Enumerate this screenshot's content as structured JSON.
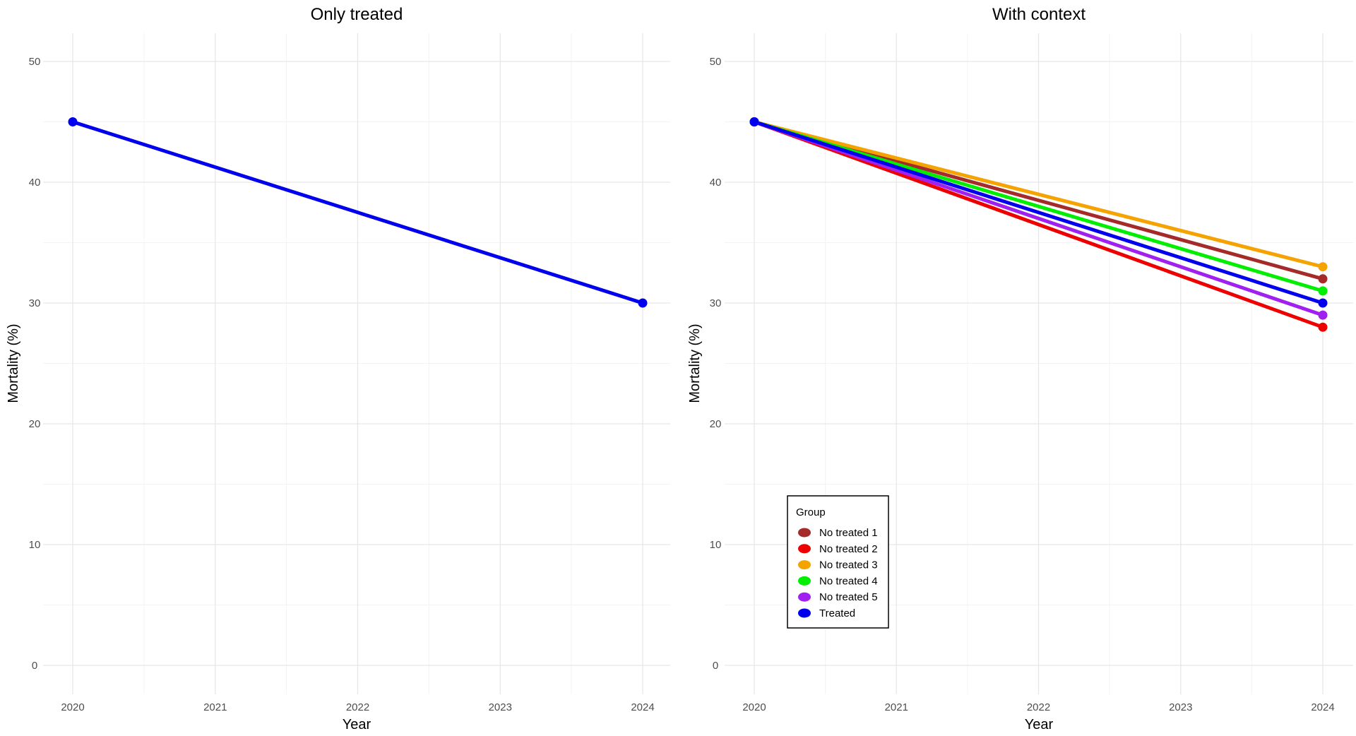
{
  "chart_data": [
    {
      "type": "line",
      "title": "Only treated",
      "xlabel": "Year",
      "ylabel": "Mortality (%)",
      "x": [
        2020,
        2024
      ],
      "xticks": [
        "2020",
        "2021",
        "2022",
        "2023",
        "2024"
      ],
      "yticks": [
        "0",
        "10",
        "20",
        "30",
        "40",
        "50"
      ],
      "xlim": [
        2020,
        2024
      ],
      "ylim": [
        0,
        50
      ],
      "grid": true,
      "series": [
        {
          "name": "Treated",
          "color": "#0000ee",
          "values": [
            45,
            30
          ]
        }
      ]
    },
    {
      "type": "line",
      "title": "With context",
      "xlabel": "Year",
      "ylabel": "Mortality (%)",
      "x": [
        2020,
        2024
      ],
      "xticks": [
        "2020",
        "2021",
        "2022",
        "2023",
        "2024"
      ],
      "yticks": [
        "0",
        "10",
        "20",
        "30",
        "40",
        "50"
      ],
      "xlim": [
        2020,
        2024
      ],
      "ylim": [
        0,
        50
      ],
      "grid": true,
      "legend_title": "Group",
      "legend_position": "bottom-left",
      "series": [
        {
          "name": "No treated 1",
          "color": "#a52a2a",
          "values": [
            45,
            32
          ]
        },
        {
          "name": "No treated 2",
          "color": "#ee0000",
          "values": [
            45,
            28
          ]
        },
        {
          "name": "No treated 3",
          "color": "#f5a300",
          "values": [
            45,
            33
          ]
        },
        {
          "name": "No treated 4",
          "color": "#00ee00",
          "values": [
            45,
            31
          ]
        },
        {
          "name": "No treated 5",
          "color": "#a020f0",
          "values": [
            45,
            29
          ]
        },
        {
          "name": "Treated",
          "color": "#0000ee",
          "values": [
            45,
            30
          ]
        }
      ]
    }
  ]
}
